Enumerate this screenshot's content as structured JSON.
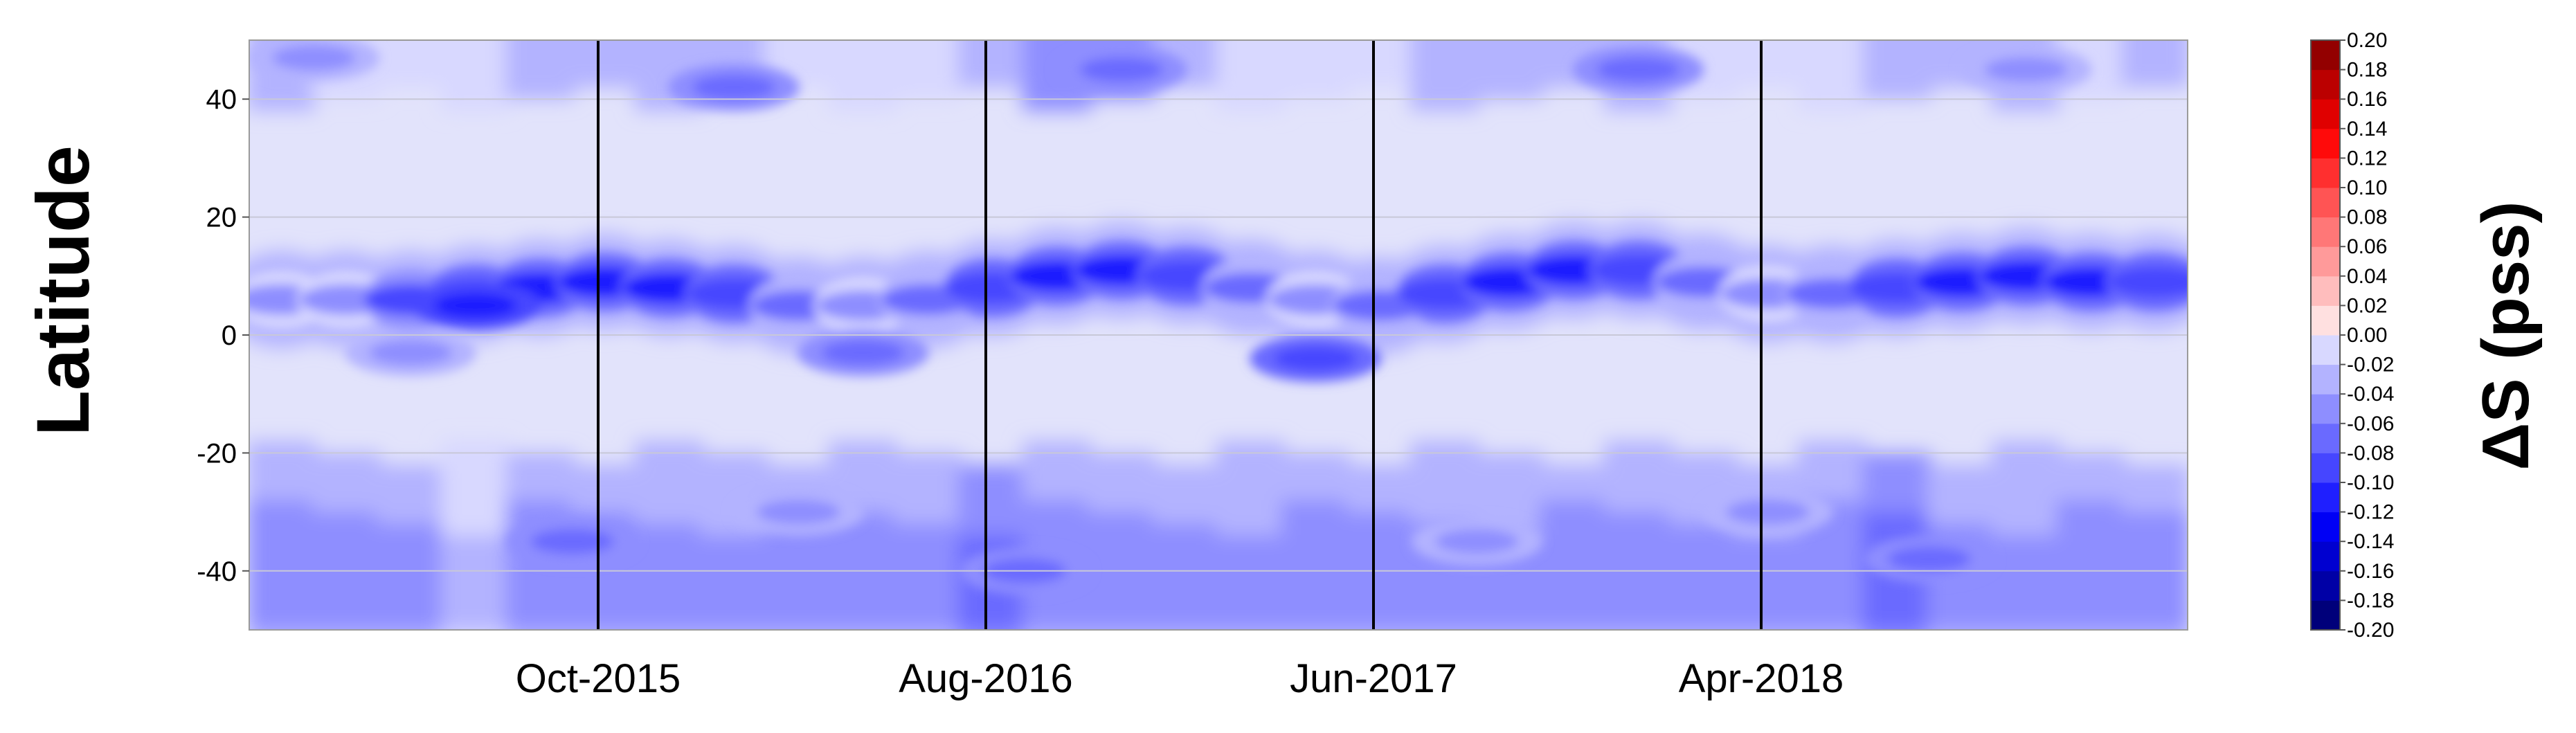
{
  "chart_data": {
    "type": "heatmap",
    "title": "",
    "ylabel": "Latitude",
    "colorbar_label": "ΔS (pss)",
    "ylim": [
      -50,
      50
    ],
    "yticks": [
      -40,
      -20,
      0,
      20,
      40
    ],
    "grid": true,
    "xtick_labels": [
      "Oct-2015",
      "Aug-2016",
      "Jun-2017",
      "Apr-2018"
    ],
    "vertical_lines_at": [
      "Oct-2015",
      "Aug-2016",
      "Jun-2017",
      "Apr-2018"
    ],
    "colorbar": {
      "levels": [
        -0.2,
        -0.18,
        -0.16,
        -0.14,
        -0.12,
        -0.1,
        -0.08,
        -0.06,
        -0.04,
        -0.02,
        0.0,
        0.02,
        0.04,
        0.06,
        0.08,
        0.1,
        0.12,
        0.14,
        0.16,
        0.18,
        0.2
      ],
      "tick_labels": [
        "-0.20",
        "-0.18",
        "-0.16",
        "-0.14",
        "-0.12",
        "-0.10",
        "-0.08",
        "-0.06",
        "-0.04",
        "-0.02",
        "0.00",
        "0.02",
        "0.04",
        "0.06",
        "0.08",
        "0.10",
        "0.12",
        "0.14",
        "0.16",
        "0.18",
        "0.20"
      ],
      "colors": [
        "#00007a",
        "#0000a6",
        "#0000d0",
        "#0000f5",
        "#1f1fff",
        "#4646ff",
        "#6a6aff",
        "#8e8eff",
        "#b3b3ff",
        "#d8d8ff",
        "#ffe0e0",
        "#ffbdbd",
        "#ff9a9a",
        "#ff7777",
        "#ff5454",
        "#ff2f2f",
        "#ff0a0a",
        "#e00000",
        "#bb0000",
        "#930000"
      ]
    },
    "features": {
      "equatorial_band": [
        {
          "month": 0,
          "lat": 6,
          "value": -0.05
        },
        {
          "month": 1,
          "lat": 6,
          "value": -0.06
        },
        {
          "month": 2,
          "lat": 6,
          "value": -0.09
        },
        {
          "month": 3,
          "lat": 7,
          "value": -0.1
        },
        {
          "month": 4,
          "lat": 8,
          "value": -0.11
        },
        {
          "month": 5,
          "lat": 9,
          "value": -0.12
        },
        {
          "month": 6,
          "lat": 8,
          "value": -0.11
        },
        {
          "month": 7,
          "lat": 7,
          "value": -0.1
        },
        {
          "month": 8,
          "lat": 5,
          "value": -0.08
        },
        {
          "month": 9,
          "lat": 5,
          "value": -0.06
        },
        {
          "month": 10,
          "lat": 6,
          "value": -0.08
        },
        {
          "month": 11,
          "lat": 8,
          "value": -0.1
        },
        {
          "month": 12,
          "lat": 10,
          "value": -0.12
        },
        {
          "month": 13,
          "lat": 11,
          "value": -0.11
        },
        {
          "month": 14,
          "lat": 10,
          "value": -0.1
        },
        {
          "month": 15,
          "lat": 8,
          "value": -0.08
        },
        {
          "month": 16,
          "lat": 6,
          "value": -0.05
        },
        {
          "month": 17,
          "lat": 5,
          "value": -0.07
        },
        {
          "month": 18,
          "lat": 7,
          "value": -0.1
        },
        {
          "month": 19,
          "lat": 9,
          "value": -0.11
        },
        {
          "month": 20,
          "lat": 11,
          "value": -0.12
        },
        {
          "month": 21,
          "lat": 11,
          "value": -0.1
        },
        {
          "month": 22,
          "lat": 9,
          "value": -0.08
        },
        {
          "month": 23,
          "lat": 7,
          "value": -0.06
        },
        {
          "month": 24,
          "lat": 7,
          "value": -0.07
        },
        {
          "month": 25,
          "lat": 8,
          "value": -0.1
        },
        {
          "month": 26,
          "lat": 9,
          "value": -0.11
        },
        {
          "month": 27,
          "lat": 10,
          "value": -0.12
        },
        {
          "month": 28,
          "lat": 9,
          "value": -0.11
        },
        {
          "month": 29,
          "lat": 9,
          "value": -0.1
        }
      ],
      "blobs": [
        {
          "month": 3.5,
          "lat": 5,
          "value": -0.12
        },
        {
          "month": 2.5,
          "lat": -3,
          "value": -0.05
        },
        {
          "month": 9.5,
          "lat": -3,
          "value": -0.07
        },
        {
          "month": 16.5,
          "lat": -4,
          "value": -0.09
        },
        {
          "month": 7.5,
          "lat": 42,
          "value": -0.07
        },
        {
          "month": 13.5,
          "lat": 45,
          "value": -0.08
        },
        {
          "month": 21.5,
          "lat": 45,
          "value": -0.07
        },
        {
          "month": 27.5,
          "lat": 45,
          "value": -0.06
        },
        {
          "month": 1.0,
          "lat": 47,
          "value": -0.05
        },
        {
          "month": 5.0,
          "lat": -35,
          "value": -0.07
        },
        {
          "month": 12.0,
          "lat": -40,
          "value": -0.08
        },
        {
          "month": 19.0,
          "lat": -35,
          "value": -0.06
        },
        {
          "month": 26.0,
          "lat": -38,
          "value": -0.07
        },
        {
          "month": 8.5,
          "lat": -30,
          "value": -0.06
        },
        {
          "month": 23.5,
          "lat": -30,
          "value": -0.06
        }
      ]
    }
  }
}
